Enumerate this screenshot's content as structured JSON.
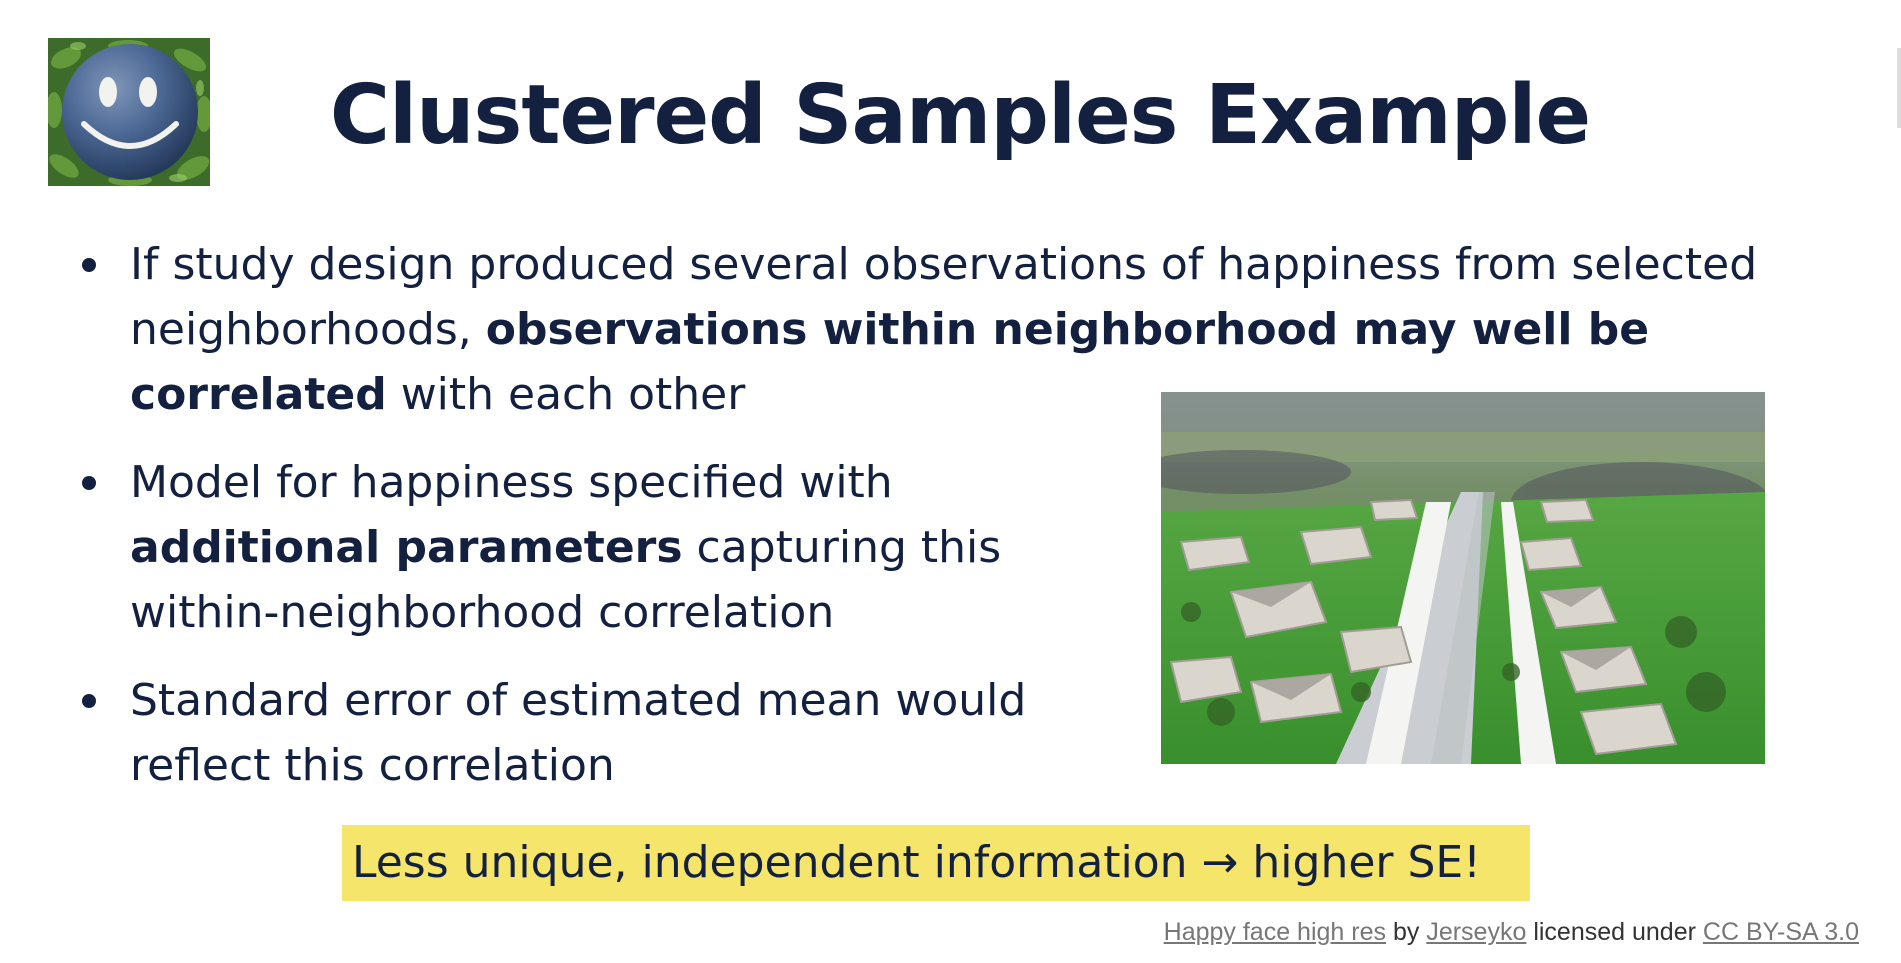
{
  "slide": {
    "title": "Clustered Samples Example",
    "logo_icon": "smiley-face-icon",
    "bullets": [
      {
        "parts": [
          {
            "text": "If study design produced several observations of happiness from selected neighborhoods, ",
            "bold": false
          },
          {
            "text": "observations within neighborhood may well be correlated",
            "bold": true
          },
          {
            "text": " with each other",
            "bold": false
          }
        ]
      },
      {
        "parts": [
          {
            "text": "Model for happiness specified with ",
            "bold": false
          },
          {
            "text": "additional parameters",
            "bold": true
          },
          {
            "text": " capturing this within-neighborhood correlation",
            "bold": false
          }
        ]
      },
      {
        "parts": [
          {
            "text": "Standard error of estimated mean would reflect this correlation",
            "bold": false
          }
        ]
      }
    ],
    "highlight": "Less unique, independent information → higher SE!",
    "highlight_color": "#f6e56b",
    "title_color": "#13203f",
    "photo_icon": "neighborhood-aerial-photo",
    "credit": {
      "link1": "Happy face high res",
      "by": "by",
      "link2": "Jerseyko",
      "licensed": "licensed under",
      "link3": "CC BY-SA 3.0"
    }
  }
}
